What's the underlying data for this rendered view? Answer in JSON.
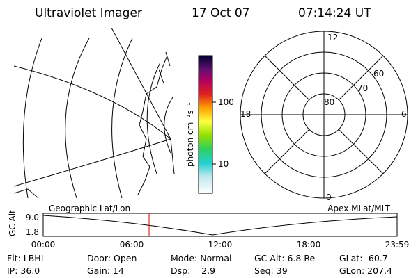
{
  "header": {
    "title": "Ultraviolet Imager",
    "date": "17 Oct 07",
    "time": "07:14:24 UT"
  },
  "colorbar": {
    "label": "photon cm⁻²s⁻¹",
    "ticks": [
      "100",
      "10"
    ]
  },
  "polar": {
    "mlt_labels": [
      "12",
      "18",
      "6",
      "0"
    ],
    "lat_labels": [
      "80",
      "70",
      "60"
    ]
  },
  "altitude_plot": {
    "left_label": "Geographic Lat/Lon",
    "right_label": "Apex MLat/MLT",
    "y_label": "GC Alt",
    "y_ticks": [
      "9.0",
      "1.8"
    ],
    "x_ticks": [
      "00:00",
      "06:00",
      "12:00",
      "18:00",
      "23:59"
    ]
  },
  "info": {
    "rows": [
      [
        "Flt: LBHL",
        "Door: Open",
        "Mode: Normal",
        "GC Alt: 6.8 Re",
        "GLat: -60.7"
      ],
      [
        "IP: 36.0",
        "Gain: 14",
        "Dsp:    2.9",
        "Seq: 39",
        "GLon: 207.4"
      ]
    ]
  }
}
